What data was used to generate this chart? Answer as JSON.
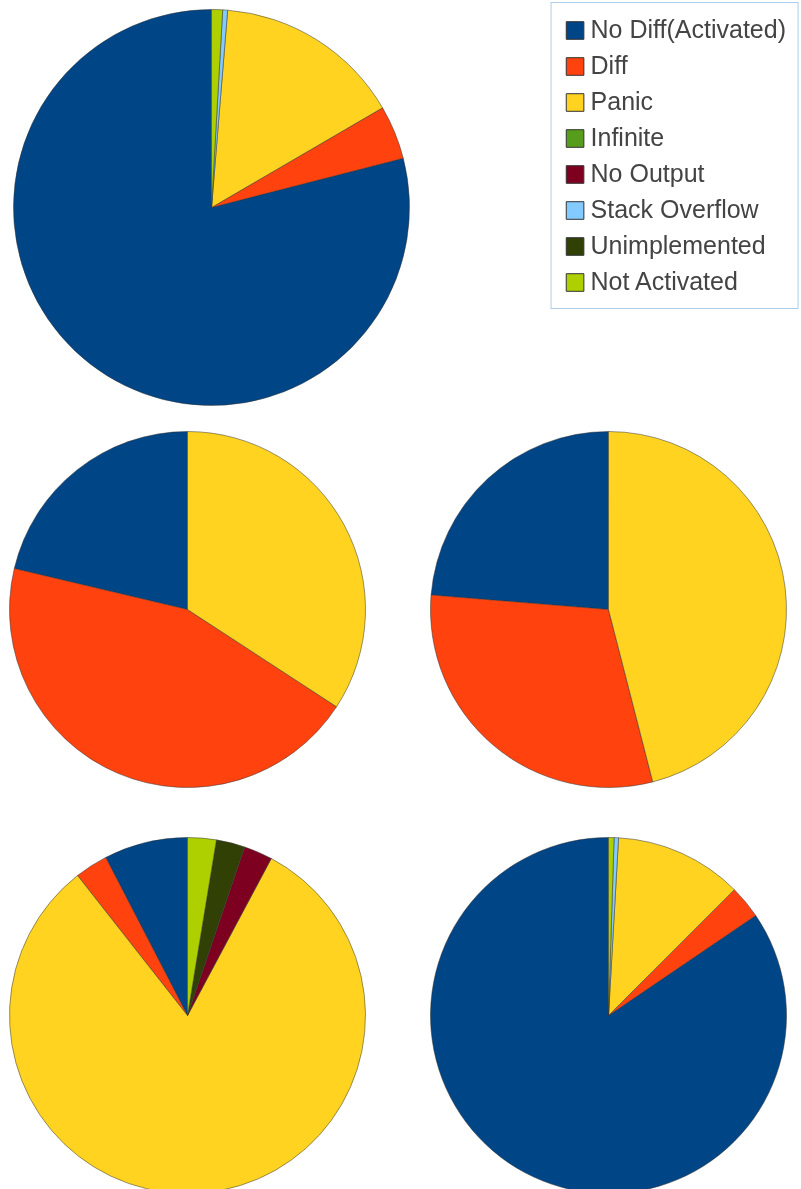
{
  "chart_data": [
    {
      "type": "pie",
      "categories": [
        "No Diff(Activated)",
        "Diff",
        "Panic",
        "Infinite",
        "No Output",
        "Stack Overflow",
        "Unimplemented",
        "Not Activated"
      ],
      "values": [
        79,
        4.4,
        15.3,
        0,
        0,
        0.4,
        0,
        0.9
      ],
      "colors": [
        "#004586",
        "#ff420e",
        "#ffd320",
        "#579d1c",
        "#7e0021",
        "#83caff",
        "#314004",
        "#aecf00"
      ],
      "legend": "top right"
    },
    {
      "type": "pie",
      "categories": [
        null,
        null,
        null,
        null,
        null,
        null,
        null,
        null
      ],
      "values": [
        21.3,
        44.5,
        34.2,
        0,
        0,
        0,
        0,
        0
      ],
      "colors": [
        "#004586",
        "#ff420e",
        "#ffd320",
        "#579d1c",
        "#7e0021",
        "#83caff",
        "#314004",
        "#aecf00"
      ]
    },
    {
      "type": "pie",
      "categories": [
        null,
        null,
        null,
        null,
        null,
        null,
        null,
        null
      ],
      "values": [
        23.7,
        30.3,
        46,
        0,
        0,
        0,
        0,
        0
      ],
      "colors": [
        "#004586",
        "#ff420e",
        "#ffd320",
        "#579d1c",
        "#7e0021",
        "#83caff",
        "#314004",
        "#aecf00"
      ]
    },
    {
      "type": "pie",
      "categories": [
        null,
        null,
        null,
        null,
        null,
        null,
        null,
        null
      ],
      "values": [
        7.6,
        3,
        81.6,
        0,
        2.6,
        0,
        2.6,
        2.6
      ],
      "colors": [
        "#004586",
        "#ff420e",
        "#ffd320",
        "#579d1c",
        "#7e0021",
        "#83caff",
        "#314004",
        "#aecf00"
      ]
    },
    {
      "type": "pie",
      "categories": [
        null,
        null,
        null,
        null,
        null,
        null,
        null,
        null
      ],
      "values": [
        84.5,
        3,
        11.6,
        0,
        0,
        0.4,
        0,
        0.5
      ],
      "colors": [
        "#004586",
        "#ff420e",
        "#ffd320",
        "#579d1c",
        "#7e0021",
        "#83caff",
        "#314004",
        "#aecf00"
      ]
    }
  ]
}
